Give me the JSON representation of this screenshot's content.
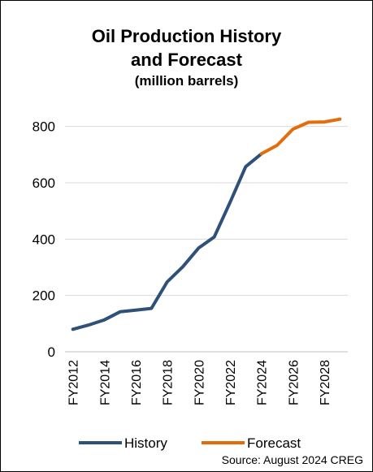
{
  "chart_data": {
    "type": "line",
    "title": "Oil Production History and Forecast",
    "title_lines": [
      "Oil Production History",
      "and Forecast"
    ],
    "subtitle": "(million barrels)",
    "xlabel": "",
    "ylabel": "",
    "ylim": [
      0,
      900
    ],
    "yticks": [
      0,
      200,
      400,
      600,
      800
    ],
    "x": [
      "FY2012",
      "FY2013",
      "FY2014",
      "FY2015",
      "FY2016",
      "FY2017",
      "FY2018",
      "FY2019",
      "FY2020",
      "FY2021",
      "FY2022",
      "FY2023",
      "FY2024",
      "FY2025",
      "FY2026",
      "FY2027",
      "FY2028",
      "FY2029"
    ],
    "xtick_labels": [
      "FY2012",
      "FY2014",
      "FY2016",
      "FY2018",
      "FY2020",
      "FY2022",
      "FY2024",
      "FY2026",
      "FY2028"
    ],
    "grid": true,
    "legend": "bottom",
    "series": [
      {
        "name": "History",
        "color": "#2E5079",
        "x": [
          "FY2012",
          "FY2013",
          "FY2014",
          "FY2015",
          "FY2016",
          "FY2017",
          "FY2018",
          "FY2019",
          "FY2020",
          "FY2021",
          "FY2022",
          "FY2023",
          "FY2024"
        ],
        "values": [
          80,
          95,
          113,
          142,
          148,
          154,
          248,
          302,
          368,
          408,
          530,
          657,
          703
        ]
      },
      {
        "name": "Forecast",
        "color": "#E46C0A",
        "x": [
          "FY2024",
          "FY2025",
          "FY2026",
          "FY2027",
          "FY2028",
          "FY2029"
        ],
        "values": [
          703,
          733,
          790,
          815,
          816,
          826
        ]
      }
    ],
    "source": "Source: August 2024 CREG"
  }
}
